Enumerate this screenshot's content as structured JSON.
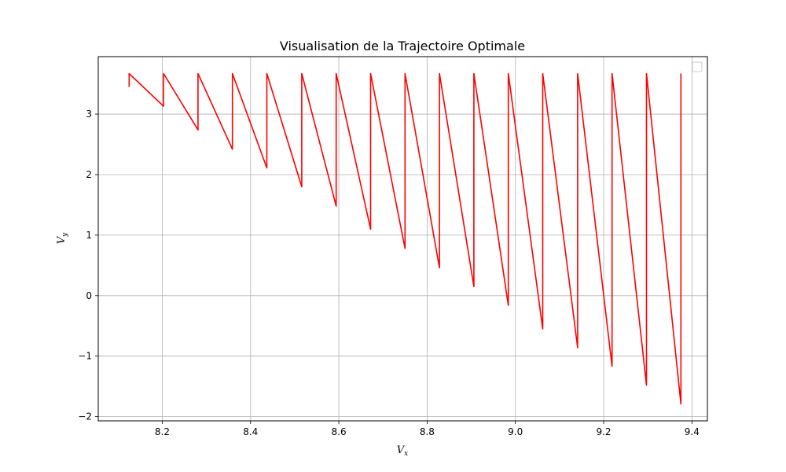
{
  "chart_data": {
    "type": "line",
    "title": "Visualisation de la Trajectoire Optimale",
    "xlabel": "V",
    "xlabel_sub": "x",
    "ylabel": "V",
    "ylabel_sub": "y",
    "xlim": [
      8.055,
      9.435
    ],
    "ylim": [
      -2.07,
      3.95
    ],
    "x_ticks": [
      8.2,
      8.4,
      8.6,
      8.8,
      9.0,
      9.2,
      9.4
    ],
    "x_tick_labels": [
      "8.2",
      "8.4",
      "8.6",
      "8.8",
      "9.0",
      "9.2",
      "9.4"
    ],
    "y_ticks": [
      -2,
      -1,
      0,
      1,
      2,
      3
    ],
    "y_tick_labels": [
      "−2",
      "−1",
      "0",
      "1",
      "2",
      "3"
    ],
    "grid": true,
    "legend": "upper-right (empty)",
    "series": [
      {
        "color": "#ff0000",
        "x": [
          8.125,
          8.125,
          8.203,
          8.203,
          8.281,
          8.281,
          8.359,
          8.359,
          8.437,
          8.437,
          8.516,
          8.516,
          8.594,
          8.594,
          8.672,
          8.672,
          8.75,
          8.75,
          8.828,
          8.828,
          8.906,
          8.906,
          8.984,
          8.984,
          9.062,
          9.062,
          9.141,
          9.141,
          9.219,
          9.219,
          9.297,
          9.297,
          9.375,
          9.375
        ],
        "y": [
          3.45,
          3.67,
          3.13,
          3.67,
          2.74,
          3.67,
          2.42,
          3.67,
          2.11,
          3.67,
          1.8,
          3.67,
          1.48,
          3.67,
          1.1,
          3.67,
          0.78,
          3.67,
          0.46,
          3.67,
          0.15,
          3.67,
          -0.16,
          3.67,
          -0.55,
          3.67,
          -0.86,
          3.67,
          -1.17,
          3.67,
          -1.48,
          3.67,
          -1.79,
          3.67
        ]
      }
    ]
  }
}
